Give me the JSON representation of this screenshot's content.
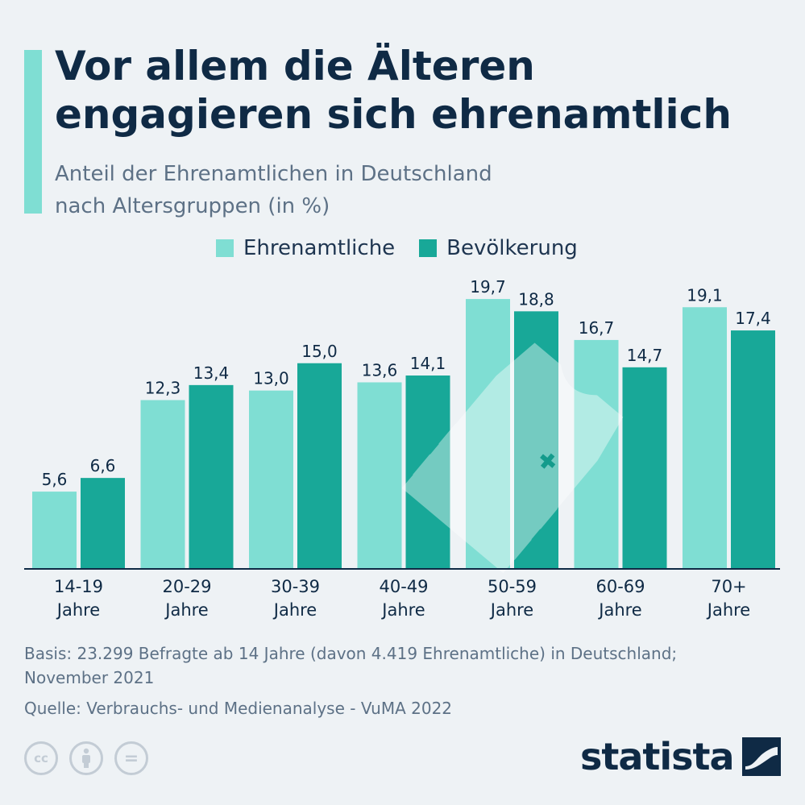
{
  "header": {
    "title_line1": "Vor allem die Älteren",
    "title_line2": "engagieren sich ehrenamtlich",
    "subtitle_line1": "Anteil der Ehrenamtlichen in Deutschland",
    "subtitle_line2": "nach Altersgruppen (in %)"
  },
  "legend": {
    "series1": "Ehrenamtliche",
    "series2": "Bevölkerung"
  },
  "colors": {
    "series1": "#7fded3",
    "series2": "#18a898",
    "accent": "#7fded3",
    "text": "#0f2a45",
    "muted": "#5d7186"
  },
  "chart_data": {
    "type": "bar",
    "categories": [
      [
        "14-19",
        "Jahre"
      ],
      [
        "20-29",
        "Jahre"
      ],
      [
        "30-39",
        "Jahre"
      ],
      [
        "40-49",
        "Jahre"
      ],
      [
        "50-59",
        "Jahre"
      ],
      [
        "60-69",
        "Jahre"
      ],
      [
        "70+",
        "Jahre"
      ]
    ],
    "series": [
      {
        "name": "Ehrenamtliche",
        "values": [
          5.6,
          12.3,
          13.0,
          13.6,
          19.7,
          16.7,
          19.1
        ],
        "labels": [
          "5,6",
          "12,3",
          "13,0",
          "13,6",
          "19,7",
          "16,7",
          "19,1"
        ]
      },
      {
        "name": "Bevölkerung",
        "values": [
          6.6,
          13.4,
          15.0,
          14.1,
          18.8,
          14.7,
          17.4
        ],
        "labels": [
          "6,6",
          "13,4",
          "15,0",
          "14,1",
          "18,8",
          "14,7",
          "17,4"
        ]
      }
    ],
    "ylim": [
      0,
      20
    ],
    "grid": false,
    "legend_position": "top"
  },
  "footer": {
    "basis_line1": "Basis: 23.299 Befragte ab 14 Jahre (davon 4.419 Ehrenamtliche) in Deutschland;",
    "basis_line2": "November 2021",
    "source": "Quelle: Verbrauchs- und Medienanalyse - VuMA 2022",
    "cc_label": "cc",
    "eq_label": "=",
    "brand": "statista"
  }
}
